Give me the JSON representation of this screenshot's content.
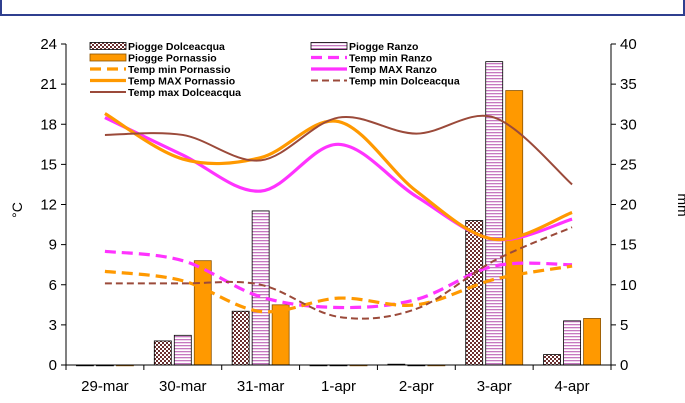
{
  "chart_data": {
    "type": "bar",
    "categories": [
      "29-mar",
      "30-mar",
      "31-mar",
      "1-apr",
      "2-apr",
      "3-apr",
      "4-apr"
    ],
    "y_left": {
      "label": "°C",
      "range": [
        0,
        24
      ],
      "ticks": [
        0,
        3,
        6,
        9,
        12,
        15,
        18,
        21,
        24
      ]
    },
    "y_right": {
      "label": "mm",
      "range": [
        0,
        40
      ],
      "ticks": [
        0,
        5,
        10,
        15,
        20,
        25,
        30,
        35,
        40
      ]
    },
    "grid": false,
    "legend_position": "top",
    "bar_series": [
      {
        "name": "Piogge Dolceacqua",
        "axis": "right",
        "color": "#7a3d3d",
        "pattern": "checker",
        "values": [
          0,
          3,
          6.7,
          0,
          0.1,
          18,
          1.3
        ]
      },
      {
        "name": "Piogge Ranzo",
        "axis": "right",
        "color": "#e3a8e0",
        "pattern": "hlines",
        "values": [
          0,
          3.7,
          19.2,
          0,
          0,
          37.8,
          5.5
        ]
      },
      {
        "name": "Piogge Pornassio",
        "axis": "right",
        "color": "#ff9900",
        "pattern": "solid",
        "values": [
          0,
          13,
          7.5,
          0,
          0,
          34.2,
          5.8
        ]
      }
    ],
    "line_series": [
      {
        "name": "Temp min Ranzo",
        "axis": "left",
        "color": "#ff33ff",
        "dash": "dashed",
        "values": [
          8.5,
          7.8,
          5.1,
          4.3,
          4.9,
          7.4,
          7.5
        ]
      },
      {
        "name": "Temp min Pornassio",
        "axis": "left",
        "color": "#ff9900",
        "dash": "dashed",
        "values": [
          7,
          6.3,
          4,
          5,
          4.5,
          6.4,
          7.4
        ]
      },
      {
        "name": "Temp MAX Ranzo",
        "axis": "left",
        "color": "#ff33ff",
        "dash": "solid",
        "values": [
          18.5,
          15.7,
          13,
          16.5,
          12.6,
          9.4,
          10.9
        ]
      },
      {
        "name": "Temp MAX Pornassio",
        "axis": "left",
        "color": "#ff9900",
        "dash": "solid",
        "values": [
          18.8,
          15.4,
          15.5,
          18.2,
          13,
          9.4,
          11.4
        ]
      },
      {
        "name": "Temp min Dolceacqua",
        "axis": "left",
        "color": "#9b4a3a",
        "dash": "dashed",
        "values": [
          6.1,
          6.1,
          6,
          3.6,
          4.2,
          7.8,
          10.3
        ]
      },
      {
        "name": "Temp max Dolceacqua",
        "axis": "left",
        "color": "#9b4a3a",
        "dash": "solid",
        "values": [
          17.2,
          17.2,
          15.3,
          18.5,
          17.3,
          18.5,
          13.5
        ]
      }
    ]
  }
}
